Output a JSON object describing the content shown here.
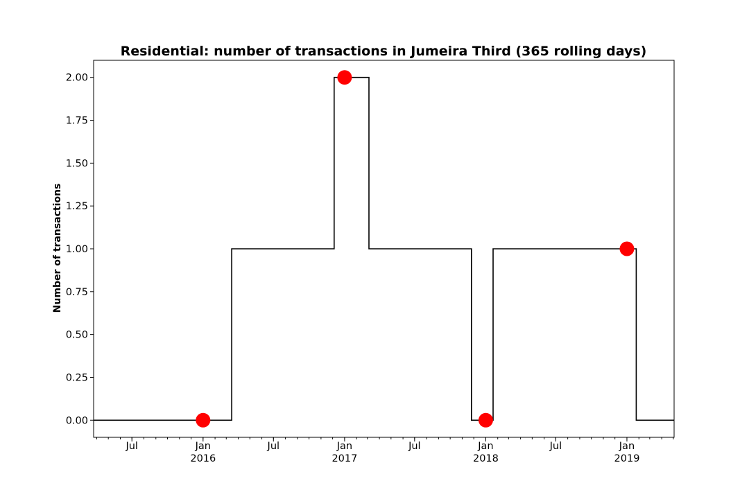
{
  "chart_data": {
    "type": "line",
    "title": "Residential: number of transactions in Jumeira Third (365 rolling days)",
    "ylabel": "Number of transactions",
    "xlabel": "",
    "xlim": [
      "2015-03-24",
      "2019-05-03"
    ],
    "ylim": [
      -0.1,
      2.1
    ],
    "y_ticks": [
      "0.00",
      "0.25",
      "0.50",
      "0.75",
      "1.00",
      "1.25",
      "1.50",
      "1.75",
      "2.00"
    ],
    "x_ticks": [
      {
        "date": "2015-07-01",
        "label": "Jul",
        "sublabel": ""
      },
      {
        "date": "2016-01-01",
        "label": "Jan",
        "sublabel": "2016"
      },
      {
        "date": "2016-07-01",
        "label": "Jul",
        "sublabel": ""
      },
      {
        "date": "2017-01-01",
        "label": "Jan",
        "sublabel": "2017"
      },
      {
        "date": "2017-07-01",
        "label": "Jul",
        "sublabel": ""
      },
      {
        "date": "2018-01-01",
        "label": "Jan",
        "sublabel": "2018"
      },
      {
        "date": "2018-07-01",
        "label": "Jul",
        "sublabel": ""
      },
      {
        "date": "2019-01-01",
        "label": "Jan",
        "sublabel": "2019"
      }
    ],
    "grid": false,
    "legend": "none",
    "series": [
      {
        "color": "#000000",
        "drawstyle": "steps",
        "points": [
          {
            "x": "2015-03-24",
            "y": 0
          },
          {
            "x": "2016-03-15",
            "y": 0
          },
          {
            "x": "2016-03-15",
            "y": 1
          },
          {
            "x": "2016-12-05",
            "y": 1
          },
          {
            "x": "2016-12-05",
            "y": 2
          },
          {
            "x": "2017-03-05",
            "y": 2
          },
          {
            "x": "2017-03-05",
            "y": 1
          },
          {
            "x": "2017-11-25",
            "y": 1
          },
          {
            "x": "2017-11-25",
            "y": 0
          },
          {
            "x": "2018-01-20",
            "y": 0
          },
          {
            "x": "2018-01-20",
            "y": 1
          },
          {
            "x": "2019-01-25",
            "y": 1
          },
          {
            "x": "2019-01-25",
            "y": 0
          },
          {
            "x": "2019-05-03",
            "y": 0
          }
        ]
      }
    ],
    "markers": [
      {
        "x": "2016-01-01",
        "y": 0
      },
      {
        "x": "2017-01-01",
        "y": 2
      },
      {
        "x": "2018-01-01",
        "y": 0
      },
      {
        "x": "2019-01-01",
        "y": 1
      }
    ],
    "marker_color": "#ff0000"
  }
}
